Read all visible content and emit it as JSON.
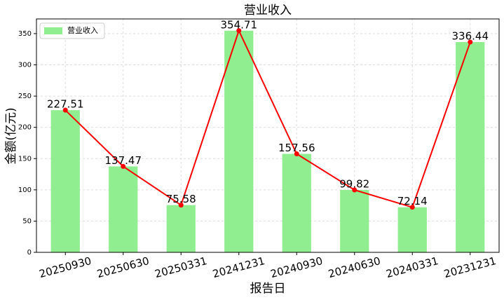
{
  "chart_data": {
    "type": "bar",
    "title": "营业收入",
    "xlabel": "报告日",
    "ylabel": "金额(亿元)",
    "categories": [
      "20250930",
      "20250630",
      "20250331",
      "20241231",
      "20240930",
      "20240630",
      "20240331",
      "20231231"
    ],
    "series": [
      {
        "name": "营业收入",
        "color": "#90ee90",
        "values": [
          227.51,
          137.47,
          75.58,
          354.71,
          157.56,
          99.82,
          72.14,
          336.44
        ]
      }
    ],
    "line_color": "#ff0000",
    "ylim": [
      0,
      373.5
    ],
    "yticks": [
      0,
      50,
      100,
      150,
      200,
      250,
      300,
      350
    ],
    "grid": true,
    "legend": "upper-left"
  }
}
